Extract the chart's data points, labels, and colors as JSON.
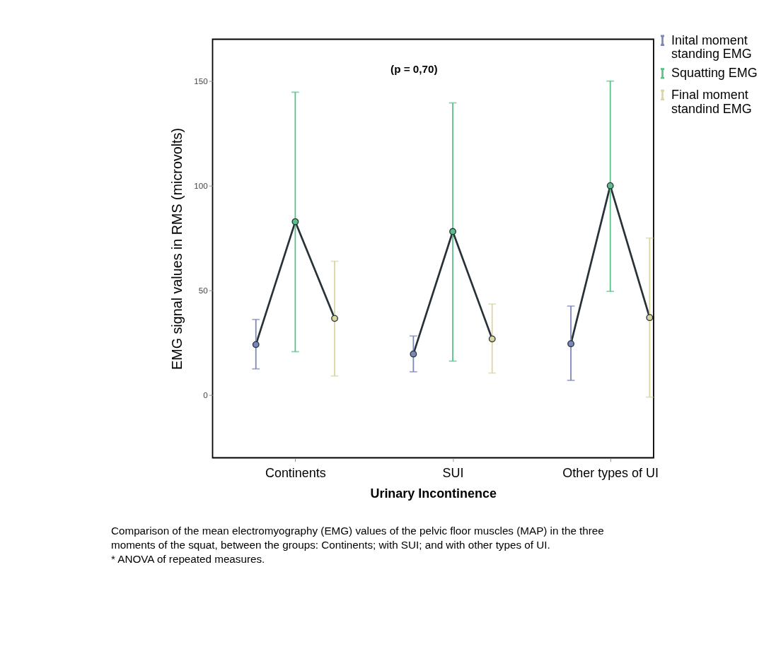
{
  "chart_data": {
    "type": "line",
    "xlabel": "Urinary Incontinence",
    "ylabel": "EMG signal values in RMS (microvolts)",
    "categories": [
      null,
      "Continents",
      null,
      null,
      null,
      "SUI",
      null,
      null,
      null,
      "Other types of UI",
      null
    ],
    "ylim": [
      -30,
      170
    ],
    "yticks": [
      0,
      50,
      100,
      150
    ],
    "grid": false,
    "legend": "top right",
    "series": [
      {
        "color": "#263238",
        "marker": "none",
        "line_style": "solid",
        "values": [
          24.1,
          82.8,
          36.6,
          null,
          19.6,
          78.1,
          26.8,
          null,
          24.5,
          100,
          37
        ]
      },
      {
        "type": "scatter",
        "marker": "circle",
        "name": "Inital moment standing EMG",
        "color": "#7b87b8",
        "values": [
          24.1,
          null,
          null,
          null,
          19.6,
          null,
          null,
          null,
          24.5,
          null,
          null
        ],
        "errors": [
          [
            12.5,
            36.1
          ],
          null,
          null,
          null,
          [
            11.1,
            28.2
          ],
          null,
          null,
          null,
          [
            7,
            42.5
          ],
          null,
          null
        ]
      },
      {
        "type": "scatter",
        "marker": "circle",
        "name": "Squatting EMG",
        "color": "#5cbf87",
        "values": [
          null,
          82.8,
          null,
          null,
          null,
          78.1,
          null,
          null,
          null,
          100,
          null
        ],
        "errors": [
          null,
          [
            20.7,
            144.7
          ],
          null,
          null,
          null,
          [
            16.2,
            139.6
          ],
          null,
          null,
          null,
          [
            49.5,
            150
          ],
          null
        ]
      },
      {
        "type": "scatter",
        "marker": "circle",
        "name": "Final moment standind EMG",
        "color": "#d9d6a0",
        "values": [
          null,
          null,
          36.6,
          null,
          null,
          null,
          26.8,
          null,
          null,
          null,
          37
        ],
        "errors": [
          null,
          null,
          [
            9.1,
            63.9
          ],
          null,
          null,
          null,
          [
            10.5,
            43.5
          ],
          null,
          null,
          null,
          [
            -1,
            75
          ]
        ]
      }
    ],
    "annotations": [
      "(p = 0,70)",
      "Comparison of the mean electromyography (EMG) values of the pelvic floor muscles (MAP) in the three moments of the squat, between the groups: Continents; with SUI; and with other types of UI.",
      "* ANOVA of repeated measures."
    ]
  }
}
